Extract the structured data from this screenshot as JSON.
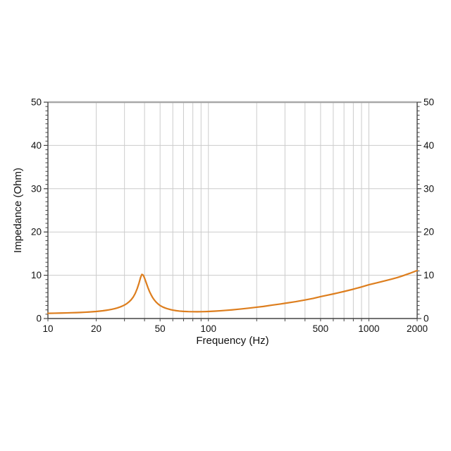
{
  "page": {
    "background": "#ffffff",
    "title": ""
  },
  "chart_data": {
    "type": "line",
    "title": "",
    "xlabel": "Frequency (Hz)",
    "ylabel": "Impedance (Ohm)",
    "x_scale": "log",
    "xlim": [
      10,
      2000
    ],
    "ylim": [
      0,
      50
    ],
    "grid": true,
    "legend": "none",
    "x_tick_values": [
      10,
      20,
      50,
      100,
      500,
      1000,
      2000
    ],
    "x_tick_labels": [
      "10",
      "20",
      "50",
      "100",
      "500",
      "1000",
      "2000"
    ],
    "x_gridline_values": [
      20,
      30,
      40,
      50,
      60,
      70,
      80,
      90,
      100,
      200,
      300,
      400,
      500,
      600,
      700,
      800,
      900,
      1000
    ],
    "y_tick_values": [
      0,
      10,
      20,
      30,
      40,
      50
    ],
    "y_tick_labels": [
      "0",
      "10",
      "20",
      "30",
      "40",
      "50"
    ],
    "y_gridline_values": [
      10,
      20,
      30,
      40
    ],
    "y_minor_tick_step": 1,
    "colors": {
      "curve": "#dd7e1e",
      "grid": "#cccccc",
      "spine": "#444444",
      "top_spine": "#a8a8a8",
      "text": "#111111"
    },
    "series": [
      {
        "name": "Impedance",
        "color": "#dd7e1e",
        "points": [
          [
            10,
            1.2
          ],
          [
            11,
            1.23
          ],
          [
            12,
            1.26
          ],
          [
            13,
            1.29
          ],
          [
            14,
            1.33
          ],
          [
            15,
            1.37
          ],
          [
            16,
            1.41
          ],
          [
            17,
            1.46
          ],
          [
            18,
            1.51
          ],
          [
            19,
            1.57
          ],
          [
            20,
            1.63
          ],
          [
            21,
            1.71
          ],
          [
            22,
            1.79
          ],
          [
            23,
            1.89
          ],
          [
            24,
            2.0
          ],
          [
            25,
            2.13
          ],
          [
            26,
            2.27
          ],
          [
            27,
            2.44
          ],
          [
            28,
            2.63
          ],
          [
            29,
            2.86
          ],
          [
            30,
            3.12
          ],
          [
            31,
            3.44
          ],
          [
            32,
            3.84
          ],
          [
            33,
            4.33
          ],
          [
            34,
            4.95
          ],
          [
            35,
            5.8
          ],
          [
            36,
            6.9
          ],
          [
            37,
            8.25
          ],
          [
            37.8,
            9.5
          ],
          [
            38.5,
            10.2
          ],
          [
            39.3,
            10.0
          ],
          [
            40,
            9.35
          ],
          [
            41,
            8.25
          ],
          [
            42,
            7.15
          ],
          [
            43,
            6.2
          ],
          [
            44,
            5.45
          ],
          [
            45,
            4.8
          ],
          [
            46,
            4.3
          ],
          [
            47,
            3.88
          ],
          [
            48,
            3.54
          ],
          [
            49,
            3.25
          ],
          [
            50,
            3.0
          ],
          [
            52,
            2.66
          ],
          [
            54,
            2.41
          ],
          [
            56,
            2.22
          ],
          [
            58,
            2.07
          ],
          [
            60,
            1.94
          ],
          [
            63,
            1.81
          ],
          [
            66,
            1.72
          ],
          [
            70,
            1.65
          ],
          [
            75,
            1.6
          ],
          [
            80,
            1.58
          ],
          [
            85,
            1.57
          ],
          [
            90,
            1.58
          ],
          [
            95,
            1.6
          ],
          [
            100,
            1.63
          ],
          [
            110,
            1.71
          ],
          [
            120,
            1.8
          ],
          [
            130,
            1.9
          ],
          [
            140,
            2.0
          ],
          [
            150,
            2.11
          ],
          [
            160,
            2.21
          ],
          [
            180,
            2.41
          ],
          [
            200,
            2.61
          ],
          [
            220,
            2.79
          ],
          [
            250,
            3.1
          ],
          [
            280,
            3.35
          ],
          [
            300,
            3.52
          ],
          [
            350,
            3.9
          ],
          [
            400,
            4.28
          ],
          [
            450,
            4.65
          ],
          [
            500,
            5.05
          ],
          [
            550,
            5.38
          ],
          [
            600,
            5.68
          ],
          [
            650,
            5.97
          ],
          [
            700,
            6.25
          ],
          [
            800,
            6.78
          ],
          [
            900,
            7.3
          ],
          [
            1000,
            7.8
          ],
          [
            1100,
            8.18
          ],
          [
            1200,
            8.52
          ],
          [
            1300,
            8.85
          ],
          [
            1400,
            9.15
          ],
          [
            1500,
            9.45
          ],
          [
            1600,
            9.78
          ],
          [
            1800,
            10.45
          ],
          [
            2000,
            11.1
          ]
        ]
      }
    ],
    "annotations": {
      "resonance_peak": {
        "frequency_hz": 38.5,
        "impedance_ohm": 10.2
      },
      "value_at_max_frequency_ohm": 11.1
    }
  }
}
